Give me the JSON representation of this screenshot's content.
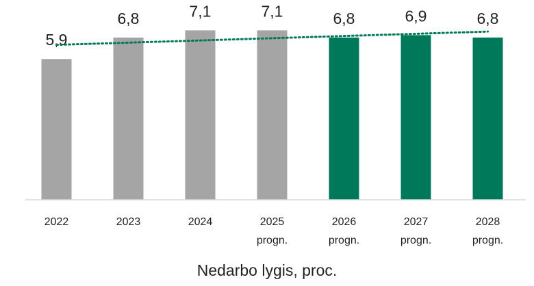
{
  "chart_data": {
    "type": "bar",
    "title": "Nedarbo lygis, proc.",
    "categories": [
      "2022",
      "2023",
      "2024",
      "2025 progn.",
      "2026 progn.",
      "2027 progn.",
      "2028 progn."
    ],
    "values": [
      5.9,
      6.8,
      7.1,
      7.1,
      6.8,
      6.9,
      6.8
    ],
    "value_labels": [
      "5,9",
      "6,8",
      "7,1",
      "7,1",
      "6,8",
      "6,9",
      "6,8"
    ],
    "colors": [
      "#a5a5a5",
      "#a5a5a5",
      "#a5a5a5",
      "#a5a5a5",
      "#00785a",
      "#00785a",
      "#00785a"
    ],
    "ylim": [
      0,
      8
    ],
    "trendline": "linear",
    "trendline_color": "#00785a"
  }
}
